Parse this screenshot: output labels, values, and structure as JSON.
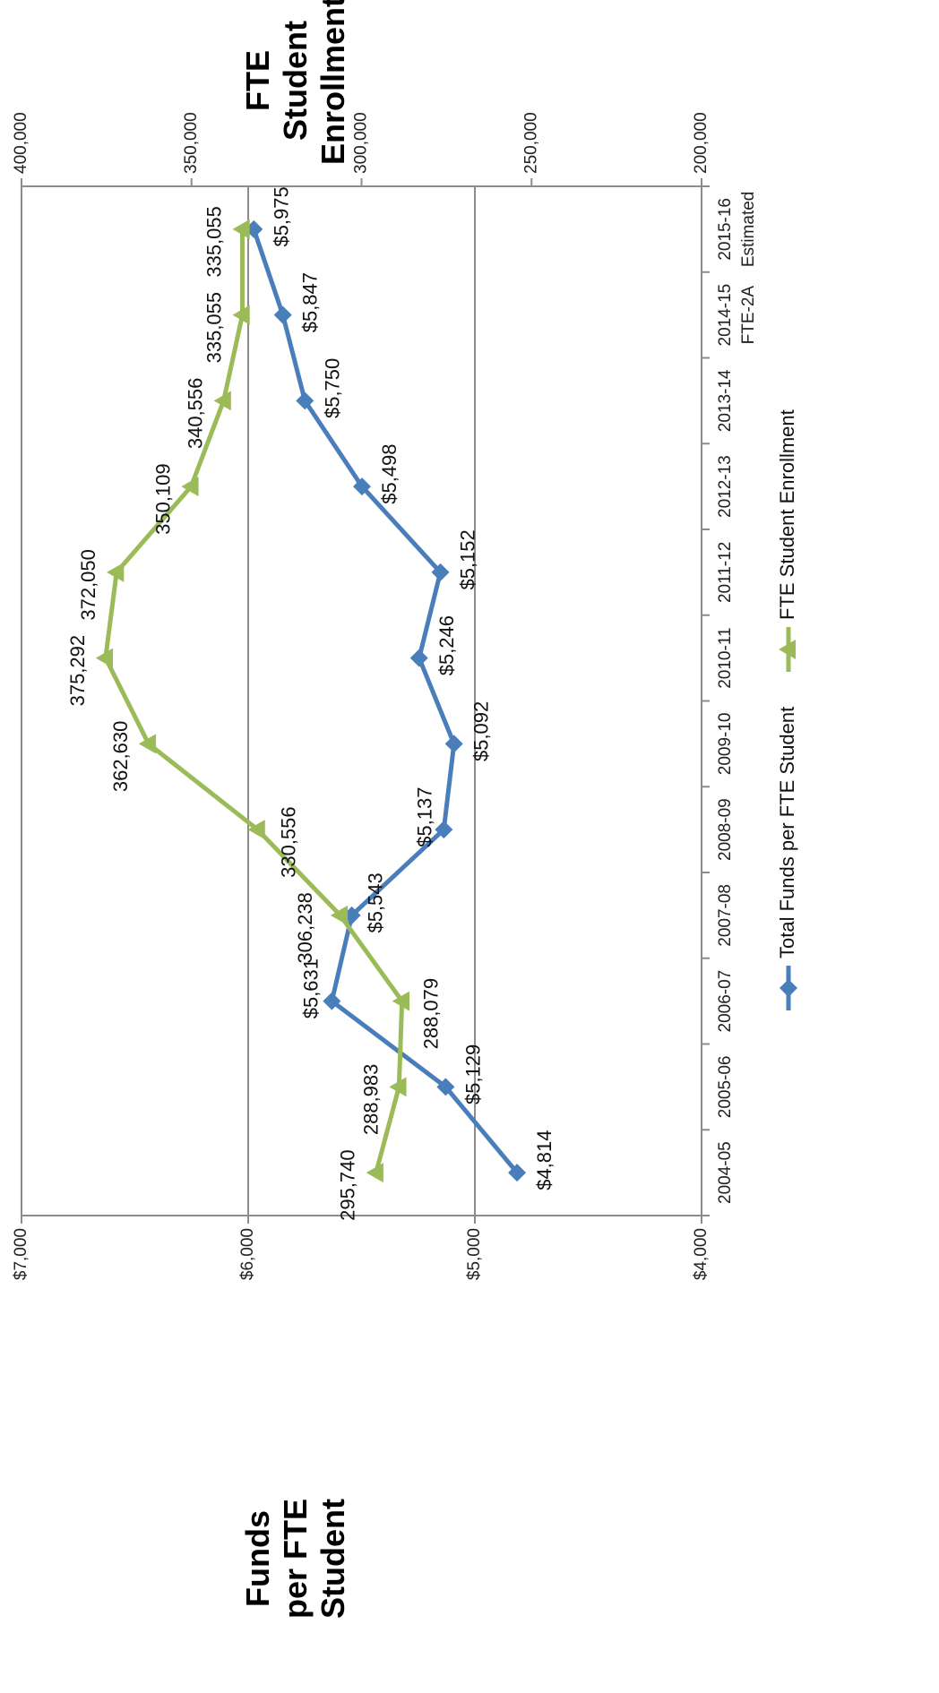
{
  "chart_data": {
    "type": "line",
    "categories": [
      "2004-05",
      "2005-06",
      "2006-07",
      "2007-08",
      "2008-09",
      "2009-10",
      "2010-11",
      "2011-12",
      "2012-13",
      "2013-14",
      "2014-15 FTE-2A",
      "2015-16 Estimated"
    ],
    "series": [
      {
        "name": "Total Funds per FTE Student",
        "color": "#4a7ebb",
        "marker": "diamond",
        "axis": "primary",
        "values": [
          4814,
          5129,
          5631,
          5543,
          5137,
          5092,
          5246,
          5152,
          5498,
          5750,
          5847,
          5975
        ],
        "labels": [
          "$4,814",
          "$5,129",
          "$5,631",
          "$5,543",
          "$5,137",
          "$5,092",
          "$5,246",
          "$5,152",
          "$5,498",
          "$5,750",
          "$5,847",
          "$5,975"
        ]
      },
      {
        "name": "FTE Student Enrollment",
        "color": "#9bbb59",
        "marker": "triangle",
        "axis": "secondary",
        "values": [
          295740,
          288983,
          288079,
          306238,
          330556,
          362630,
          375292,
          372050,
          350109,
          340556,
          335055,
          335055
        ],
        "labels": [
          "295,740",
          "288,983",
          "288,079",
          "306,238",
          "330,556",
          "362,630",
          "375,292",
          "372,050",
          "350,109",
          "340,556",
          "335,055",
          "335,055"
        ]
      }
    ],
    "primary_axis": {
      "title": "Funds per FTE Student",
      "title_lines": [
        "Funds",
        "per FTE",
        "Student"
      ],
      "range": [
        4000,
        7000
      ],
      "ticks": [
        "$4,000",
        "$5,000",
        "$6,000",
        "$7,000"
      ]
    },
    "secondary_axis": {
      "title": "FTE Student Enrollment",
      "title_lines": [
        "FTE",
        "Student",
        "Enrollment"
      ],
      "range": [
        200000,
        400000
      ],
      "ticks": [
        "200,000",
        "250,000",
        "300,000",
        "350,000",
        "400,000"
      ]
    },
    "gridlines": "horizontal",
    "legend_position": "bottom",
    "orientation": "rotated 90° clockwise"
  }
}
